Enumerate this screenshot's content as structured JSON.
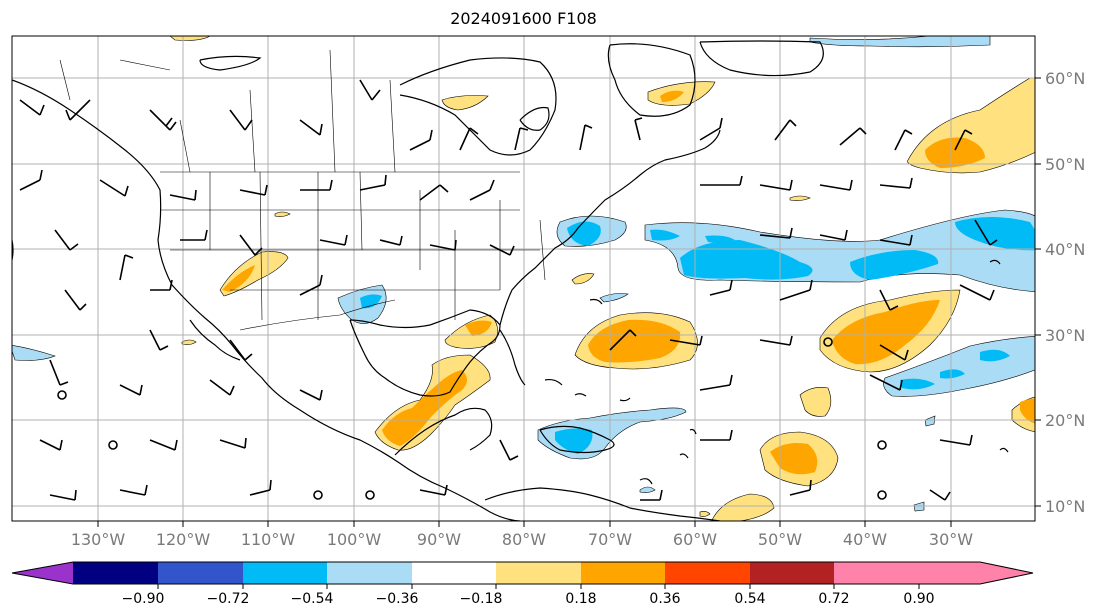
{
  "map": {
    "title": "2024091600 F108",
    "lon_labels": [
      "130°W",
      "120°W",
      "110°W",
      "100°W",
      "90°W",
      "80°W",
      "70°W",
      "60°W",
      "50°W",
      "40°W",
      "30°W"
    ],
    "lat_labels": [
      "60°N",
      "50°N",
      "40°N",
      "30°N",
      "20°N",
      "10°N"
    ]
  },
  "colorbar": {
    "colors": [
      "#9933cc",
      "#000080",
      "#3355cc",
      "#00bbf5",
      "#aadcf5",
      "#ffffff",
      "#ffe27f",
      "#ffa500",
      "#ff4500",
      "#b22222",
      "#ff82aa"
    ],
    "tick_labels": [
      "−0.90",
      "−0.72",
      "−0.54",
      "−0.36",
      "−0.18",
      "0.18",
      "0.36",
      "0.54",
      "0.72",
      "0.90"
    ]
  }
}
